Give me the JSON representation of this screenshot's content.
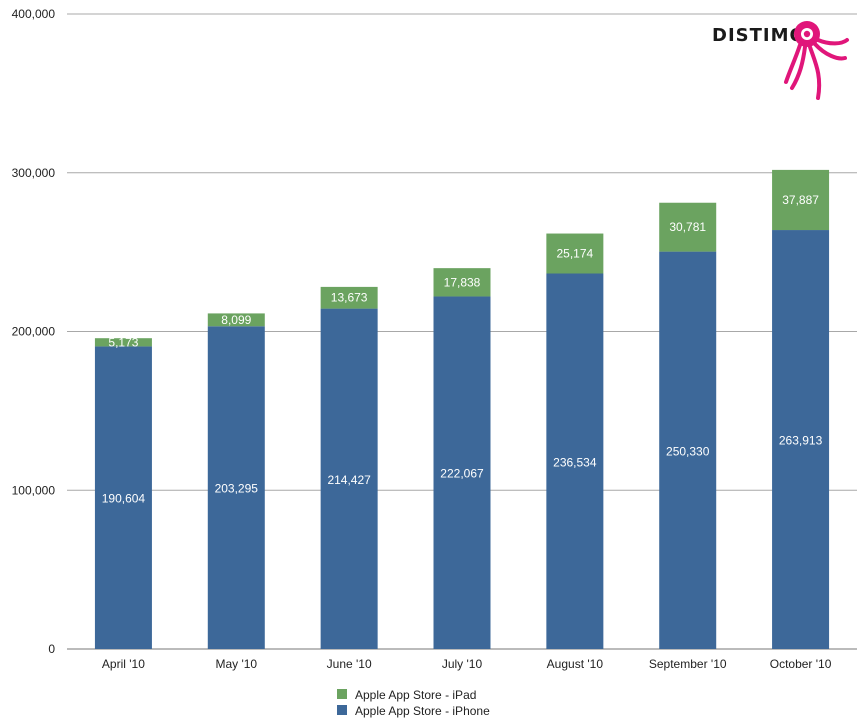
{
  "chart_data": {
    "type": "bar",
    "stacked": true,
    "categories": [
      "April '10",
      "May '10",
      "June '10",
      "July '10",
      "August '10",
      "September '10",
      "October '10"
    ],
    "series": [
      {
        "name": "Apple App Store - iPhone",
        "color": "#3d6899",
        "values": [
          190604,
          203295,
          214427,
          222067,
          236534,
          250330,
          263913
        ],
        "labels": [
          "190,604",
          "203,295",
          "214,427",
          "222,067",
          "236,534",
          "250,330",
          "263,913"
        ]
      },
      {
        "name": "Apple App Store - iPad",
        "color": "#6ba360",
        "values": [
          5173,
          8099,
          13673,
          17838,
          25174,
          30781,
          37887
        ],
        "labels": [
          "5,173",
          "8,099",
          "13,673",
          "17,838",
          "25,174",
          "30,781",
          "37,887"
        ]
      }
    ],
    "yticks": [
      0,
      100000,
      200000,
      300000,
      400000
    ],
    "ytick_labels": [
      "0",
      "100,000",
      "200,000",
      "300,000",
      "400,000"
    ],
    "ylim": [
      0,
      400000
    ],
    "grid": true,
    "legend_position": "bottom-center",
    "legend": [
      {
        "label": "Apple App Store - iPad",
        "color": "#6ba360"
      },
      {
        "label": "Apple App Store - iPhone",
        "color": "#3d6899"
      }
    ],
    "title": "",
    "xlabel": "",
    "ylabel": ""
  },
  "logo": {
    "text": "DISTIMO",
    "color": "#e0167a",
    "icon": "octopus-icon"
  }
}
